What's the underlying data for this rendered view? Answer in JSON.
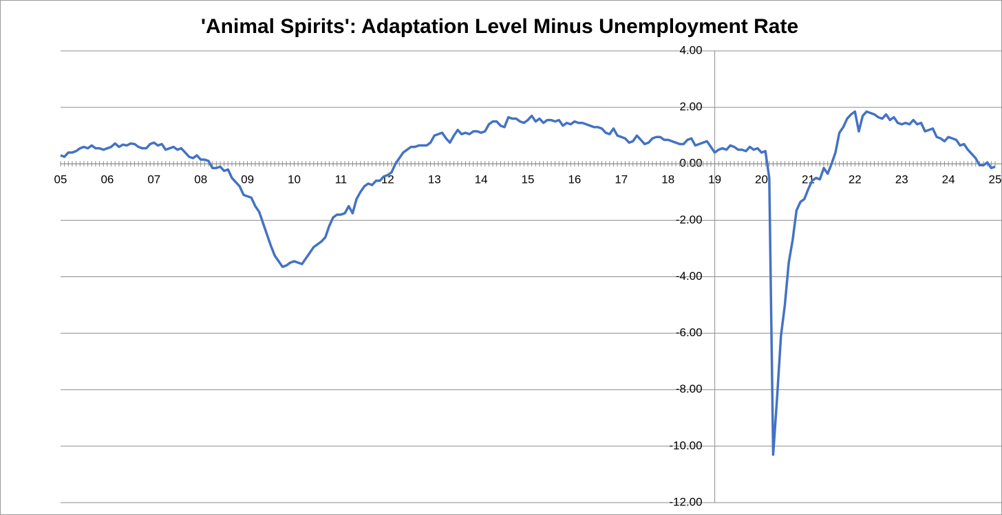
{
  "chart_data": {
    "type": "line",
    "title": "'Animal Spirits': Adaptation Level Minus Unemployment Rate",
    "categories": [
      "05",
      null,
      null,
      null,
      null,
      null,
      null,
      null,
      null,
      null,
      null,
      null,
      "06",
      null,
      null,
      null,
      null,
      null,
      null,
      null,
      null,
      null,
      null,
      null,
      "07",
      null,
      null,
      null,
      null,
      null,
      null,
      null,
      null,
      null,
      null,
      null,
      "08",
      null,
      null,
      null,
      null,
      null,
      null,
      null,
      null,
      null,
      null,
      null,
      "09",
      null,
      null,
      null,
      null,
      null,
      null,
      null,
      null,
      null,
      null,
      null,
      "10",
      null,
      null,
      null,
      null,
      null,
      null,
      null,
      null,
      null,
      null,
      null,
      "11",
      null,
      null,
      null,
      null,
      null,
      null,
      null,
      null,
      null,
      null,
      null,
      "12",
      null,
      null,
      null,
      null,
      null,
      null,
      null,
      null,
      null,
      null,
      null,
      "13",
      null,
      null,
      null,
      null,
      null,
      null,
      null,
      null,
      null,
      null,
      null,
      "14",
      null,
      null,
      null,
      null,
      null,
      null,
      null,
      null,
      null,
      null,
      null,
      "15",
      null,
      null,
      null,
      null,
      null,
      null,
      null,
      null,
      null,
      null,
      null,
      "16",
      null,
      null,
      null,
      null,
      null,
      null,
      null,
      null,
      null,
      null,
      null,
      "17",
      null,
      null,
      null,
      null,
      null,
      null,
      null,
      null,
      null,
      null,
      null,
      "18",
      null,
      null,
      null,
      null,
      null,
      null,
      null,
      null,
      null,
      null,
      null,
      "19",
      null,
      null,
      null,
      null,
      null,
      null,
      null,
      null,
      null,
      null,
      null,
      "20",
      null,
      null,
      null,
      null,
      null,
      null,
      null,
      null,
      null,
      null,
      null,
      "21",
      null,
      null,
      null,
      null,
      null,
      null,
      null,
      null,
      null,
      null,
      null,
      "22",
      null,
      null,
      null,
      null,
      null,
      null,
      null,
      null,
      null,
      null,
      null,
      "23",
      null,
      null,
      null,
      null,
      null,
      null,
      null,
      null,
      null,
      null,
      null,
      "24",
      null,
      null,
      null,
      null,
      null,
      null,
      null,
      null,
      null,
      null,
      null,
      "25"
    ],
    "series": [
      {
        "color": "#4472c4",
        "values": [
          0.3,
          0.25,
          0.4,
          0.4,
          0.45,
          0.55,
          0.6,
          0.55,
          0.65,
          0.55,
          0.55,
          0.5,
          0.55,
          0.6,
          0.72,
          0.6,
          0.68,
          0.65,
          0.72,
          0.7,
          0.6,
          0.55,
          0.55,
          0.7,
          0.75,
          0.65,
          0.7,
          0.5,
          0.55,
          0.6,
          0.5,
          0.55,
          0.4,
          0.25,
          0.2,
          0.3,
          0.15,
          0.15,
          0.1,
          -0.15,
          -0.15,
          -0.1,
          -0.25,
          -0.2,
          -0.5,
          -0.65,
          -0.8,
          -1.1,
          -1.15,
          -1.2,
          -1.5,
          -1.7,
          -2.1,
          -2.5,
          -2.9,
          -3.25,
          -3.45,
          -3.65,
          -3.6,
          -3.5,
          -3.45,
          -3.5,
          -3.55,
          -3.35,
          -3.15,
          -2.95,
          -2.85,
          -2.75,
          -2.6,
          -2.2,
          -1.9,
          -1.8,
          -1.8,
          -1.75,
          -1.5,
          -1.75,
          -1.25,
          -1.0,
          -0.8,
          -0.7,
          -0.75,
          -0.6,
          -0.6,
          -0.45,
          -0.4,
          -0.3,
          0.0,
          0.2,
          0.4,
          0.5,
          0.6,
          0.6,
          0.65,
          0.65,
          0.65,
          0.75,
          1.0,
          1.05,
          1.1,
          0.9,
          0.75,
          1.0,
          1.2,
          1.05,
          1.1,
          1.05,
          1.15,
          1.15,
          1.1,
          1.15,
          1.4,
          1.5,
          1.5,
          1.35,
          1.3,
          1.65,
          1.6,
          1.6,
          1.5,
          1.45,
          1.55,
          1.7,
          1.5,
          1.6,
          1.45,
          1.55,
          1.55,
          1.5,
          1.55,
          1.35,
          1.45,
          1.4,
          1.5,
          1.45,
          1.45,
          1.4,
          1.35,
          1.3,
          1.3,
          1.25,
          1.1,
          1.05,
          1.25,
          1.0,
          0.95,
          0.9,
          0.75,
          0.8,
          1.0,
          0.85,
          0.7,
          0.75,
          0.9,
          0.95,
          0.95,
          0.85,
          0.85,
          0.8,
          0.75,
          0.7,
          0.7,
          0.85,
          0.9,
          0.65,
          0.7,
          0.75,
          0.8,
          0.6,
          0.4,
          0.5,
          0.55,
          0.5,
          0.65,
          0.6,
          0.5,
          0.5,
          0.45,
          0.6,
          0.5,
          0.55,
          0.4,
          0.45,
          -0.5,
          -10.3,
          -8.3,
          -6.1,
          -5.0,
          -3.5,
          -2.7,
          -1.65,
          -1.35,
          -1.25,
          -0.9,
          -0.6,
          -0.5,
          -0.55,
          -0.15,
          -0.35,
          0.0,
          0.4,
          1.1,
          1.3,
          1.6,
          1.75,
          1.85,
          1.15,
          1.7,
          1.85,
          1.8,
          1.75,
          1.65,
          1.6,
          1.75,
          1.55,
          1.65,
          1.45,
          1.4,
          1.45,
          1.4,
          1.55,
          1.4,
          1.45,
          1.15,
          1.2,
          1.25,
          0.95,
          0.9,
          0.8,
          0.95,
          0.9,
          0.85,
          0.65,
          0.7,
          0.5,
          0.35,
          0.2,
          -0.05,
          -0.05,
          0.05,
          -0.15,
          -0.1
        ]
      }
    ],
    "ylim": [
      -12,
      4
    ],
    "yticks": [
      {
        "value": -12,
        "label": "-12.00"
      },
      {
        "value": -10,
        "label": "-10.00"
      },
      {
        "value": -8,
        "label": "-8.00"
      },
      {
        "value": -6,
        "label": "-6.00"
      },
      {
        "value": -4,
        "label": "-4.00"
      },
      {
        "value": -2,
        "label": "-2.00"
      },
      {
        "value": 0,
        "label": "0.00"
      },
      {
        "value": 2,
        "label": "2.00"
      },
      {
        "value": 4,
        "label": "4.00"
      }
    ],
    "grid": true
  }
}
